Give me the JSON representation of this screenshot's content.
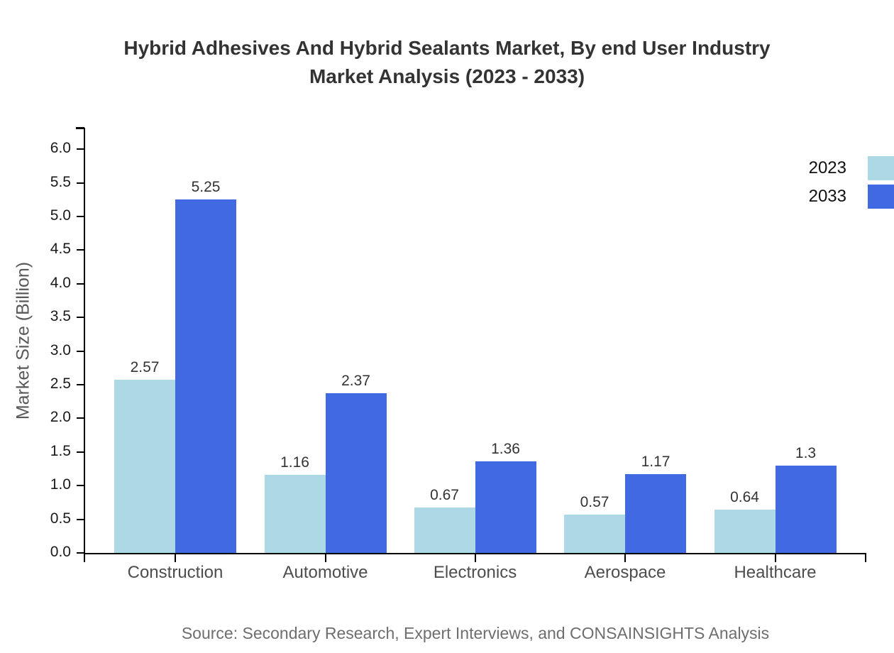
{
  "chart": {
    "title_lines": [
      "Hybrid Adhesives And Hybrid Sealants Market, By end User Industry",
      "Market Analysis (2023 - 2033)"
    ],
    "source": "Source: Secondary Research, Expert Interviews, and CONSAINSIGHTS Analysis"
  },
  "chart_data": {
    "type": "bar",
    "title": "Hybrid Adhesives And Hybrid Sealants Market, By end User Industry Market Analysis (2023 - 2033)",
    "categories": [
      "Construction",
      "Automotive",
      "Electronics",
      "Aerospace",
      "Healthcare"
    ],
    "series": [
      {
        "name": "2023",
        "color": "#ADD8E6",
        "values": [
          2.57,
          1.16,
          0.67,
          0.57,
          0.64
        ]
      },
      {
        "name": "2033",
        "color": "#4169E1",
        "values": [
          5.25,
          2.37,
          1.36,
          1.17,
          1.3
        ]
      }
    ],
    "xlabel": "",
    "ylabel": "Market Size (Billion)",
    "ylim": [
      0,
      6
    ],
    "ytick_step": 0.5,
    "ytick_labels": [
      "0.0",
      "0.5",
      "1.0",
      "1.5",
      "2.0",
      "2.5",
      "3.0",
      "3.5",
      "4.0",
      "4.5",
      "5.0",
      "5.5",
      "6.0"
    ],
    "grid": false,
    "legend_position": "top-right",
    "value_labels_shown": true
  }
}
